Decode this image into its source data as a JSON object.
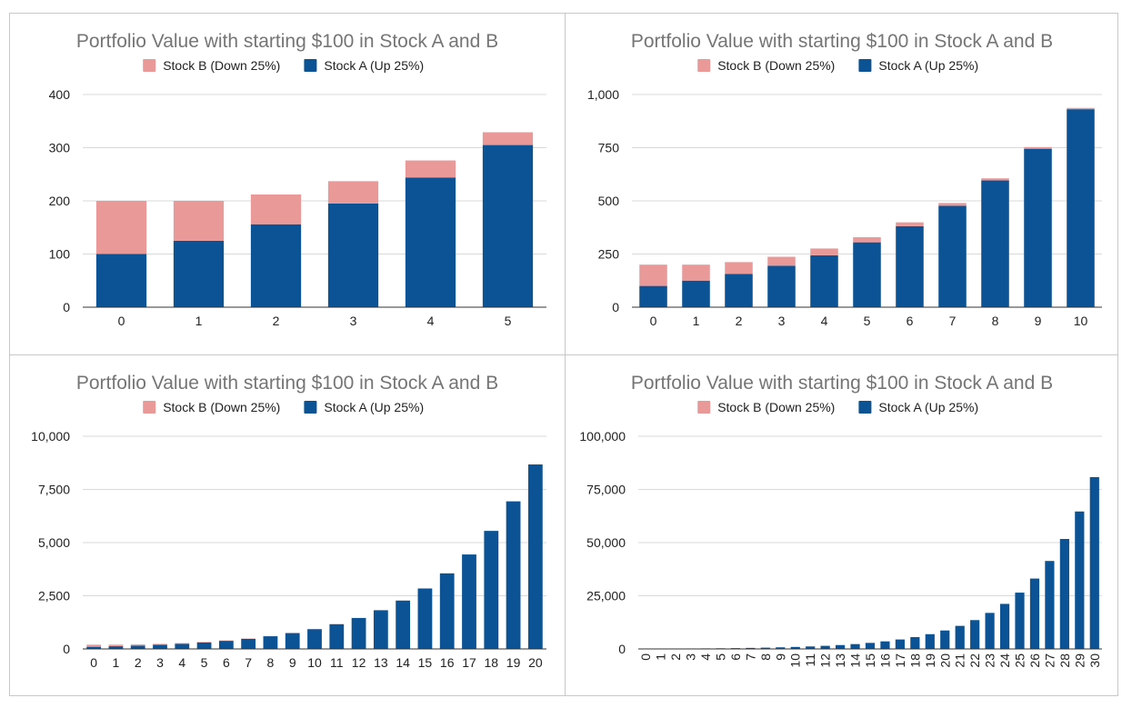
{
  "colors": {
    "stock_a": "#0b5394",
    "stock_b": "#ea9999"
  },
  "chart_data": [
    {
      "type": "bar",
      "stacked": true,
      "title": "Portfolio Value with starting $100 in Stock A and B",
      "legend": [
        "Stock B (Down 25%)",
        "Stock A (Up 25%)"
      ],
      "legend_position": "top",
      "categories": [
        "0",
        "1",
        "2",
        "3",
        "4",
        "5"
      ],
      "series": [
        {
          "name": "Stock A (Up 25%)",
          "values": [
            100,
            125,
            156,
            195,
            244,
            305
          ]
        },
        {
          "name": "Stock B (Down 25%)",
          "values": [
            100,
            75,
            56,
            42,
            32,
            24
          ]
        }
      ],
      "ylim": [
        0,
        400
      ],
      "yticks": [
        "0",
        "100",
        "200",
        "300",
        "400"
      ],
      "xlabel": "",
      "ylabel": ""
    },
    {
      "type": "bar",
      "stacked": true,
      "title": "Portfolio Value with starting $100 in Stock A and B",
      "legend": [
        "Stock B (Down 25%)",
        "Stock A (Up 25%)"
      ],
      "legend_position": "top",
      "categories": [
        "0",
        "1",
        "2",
        "3",
        "4",
        "5",
        "6",
        "7",
        "8",
        "9",
        "10"
      ],
      "series": [
        {
          "name": "Stock A (Up 25%)",
          "values": [
            100,
            125,
            156,
            195,
            244,
            305,
            381,
            477,
            596,
            745,
            931
          ]
        },
        {
          "name": "Stock B (Down 25%)",
          "values": [
            100,
            75,
            56,
            42,
            32,
            24,
            18,
            13,
            10,
            8,
            6
          ]
        }
      ],
      "ylim": [
        0,
        1000
      ],
      "yticks": [
        "0",
        "250",
        "500",
        "750",
        "1,000"
      ],
      "xlabel": "",
      "ylabel": ""
    },
    {
      "type": "bar",
      "stacked": true,
      "title": "Portfolio Value with starting $100 in Stock A and B",
      "legend": [
        "Stock B (Down 25%)",
        "Stock A (Up 25%)"
      ],
      "legend_position": "top",
      "categories": [
        "0",
        "1",
        "2",
        "3",
        "4",
        "5",
        "6",
        "7",
        "8",
        "9",
        "10",
        "11",
        "12",
        "13",
        "14",
        "15",
        "16",
        "17",
        "18",
        "19",
        "20"
      ],
      "series": [
        {
          "name": "Stock A (Up 25%)",
          "values": [
            100,
            125,
            156,
            195,
            244,
            305,
            381,
            477,
            596,
            745,
            931,
            1164,
            1455,
            1819,
            2274,
            2842,
            3553,
            4441,
            5551,
            6939,
            8674
          ]
        },
        {
          "name": "Stock B (Down 25%)",
          "values": [
            100,
            75,
            56,
            42,
            32,
            24,
            18,
            13,
            10,
            8,
            6,
            4,
            3,
            2,
            2,
            1,
            1,
            1,
            1,
            0,
            0
          ]
        }
      ],
      "ylim": [
        0,
        10000
      ],
      "yticks": [
        "0",
        "2,500",
        "5,000",
        "7,500",
        "10,000"
      ],
      "xlabel": "",
      "ylabel": ""
    },
    {
      "type": "bar",
      "stacked": true,
      "title": "Portfolio Value with starting $100 in Stock A and B",
      "legend": [
        "Stock B (Down 25%)",
        "Stock A (Up 25%)"
      ],
      "legend_position": "top",
      "categories": [
        "0",
        "1",
        "2",
        "3",
        "4",
        "5",
        "6",
        "7",
        "8",
        "9",
        "10",
        "11",
        "12",
        "13",
        "14",
        "15",
        "16",
        "17",
        "18",
        "19",
        "20",
        "21",
        "22",
        "23",
        "24",
        "25",
        "26",
        "27",
        "28",
        "29",
        "30"
      ],
      "series": [
        {
          "name": "Stock A (Up 25%)",
          "values": [
            100,
            125,
            156,
            195,
            244,
            305,
            381,
            477,
            596,
            745,
            931,
            1164,
            1455,
            1819,
            2274,
            2842,
            3553,
            4441,
            5551,
            6939,
            8674,
            10842,
            13553,
            16941,
            21176,
            26470,
            33087,
            41359,
            51699,
            64623,
            80779
          ]
        },
        {
          "name": "Stock B (Down 25%)",
          "values": [
            100,
            75,
            56,
            42,
            32,
            24,
            18,
            13,
            10,
            8,
            6,
            4,
            3,
            2,
            2,
            1,
            1,
            1,
            1,
            0,
            0,
            0,
            0,
            0,
            0,
            0,
            0,
            0,
            0,
            0,
            0
          ]
        }
      ],
      "ylim": [
        0,
        100000
      ],
      "yticks": [
        "0",
        "25,000",
        "50,000",
        "75,000",
        "100,000"
      ],
      "xlabel": "",
      "ylabel": "",
      "x_tick_rotation": "vertical"
    }
  ]
}
